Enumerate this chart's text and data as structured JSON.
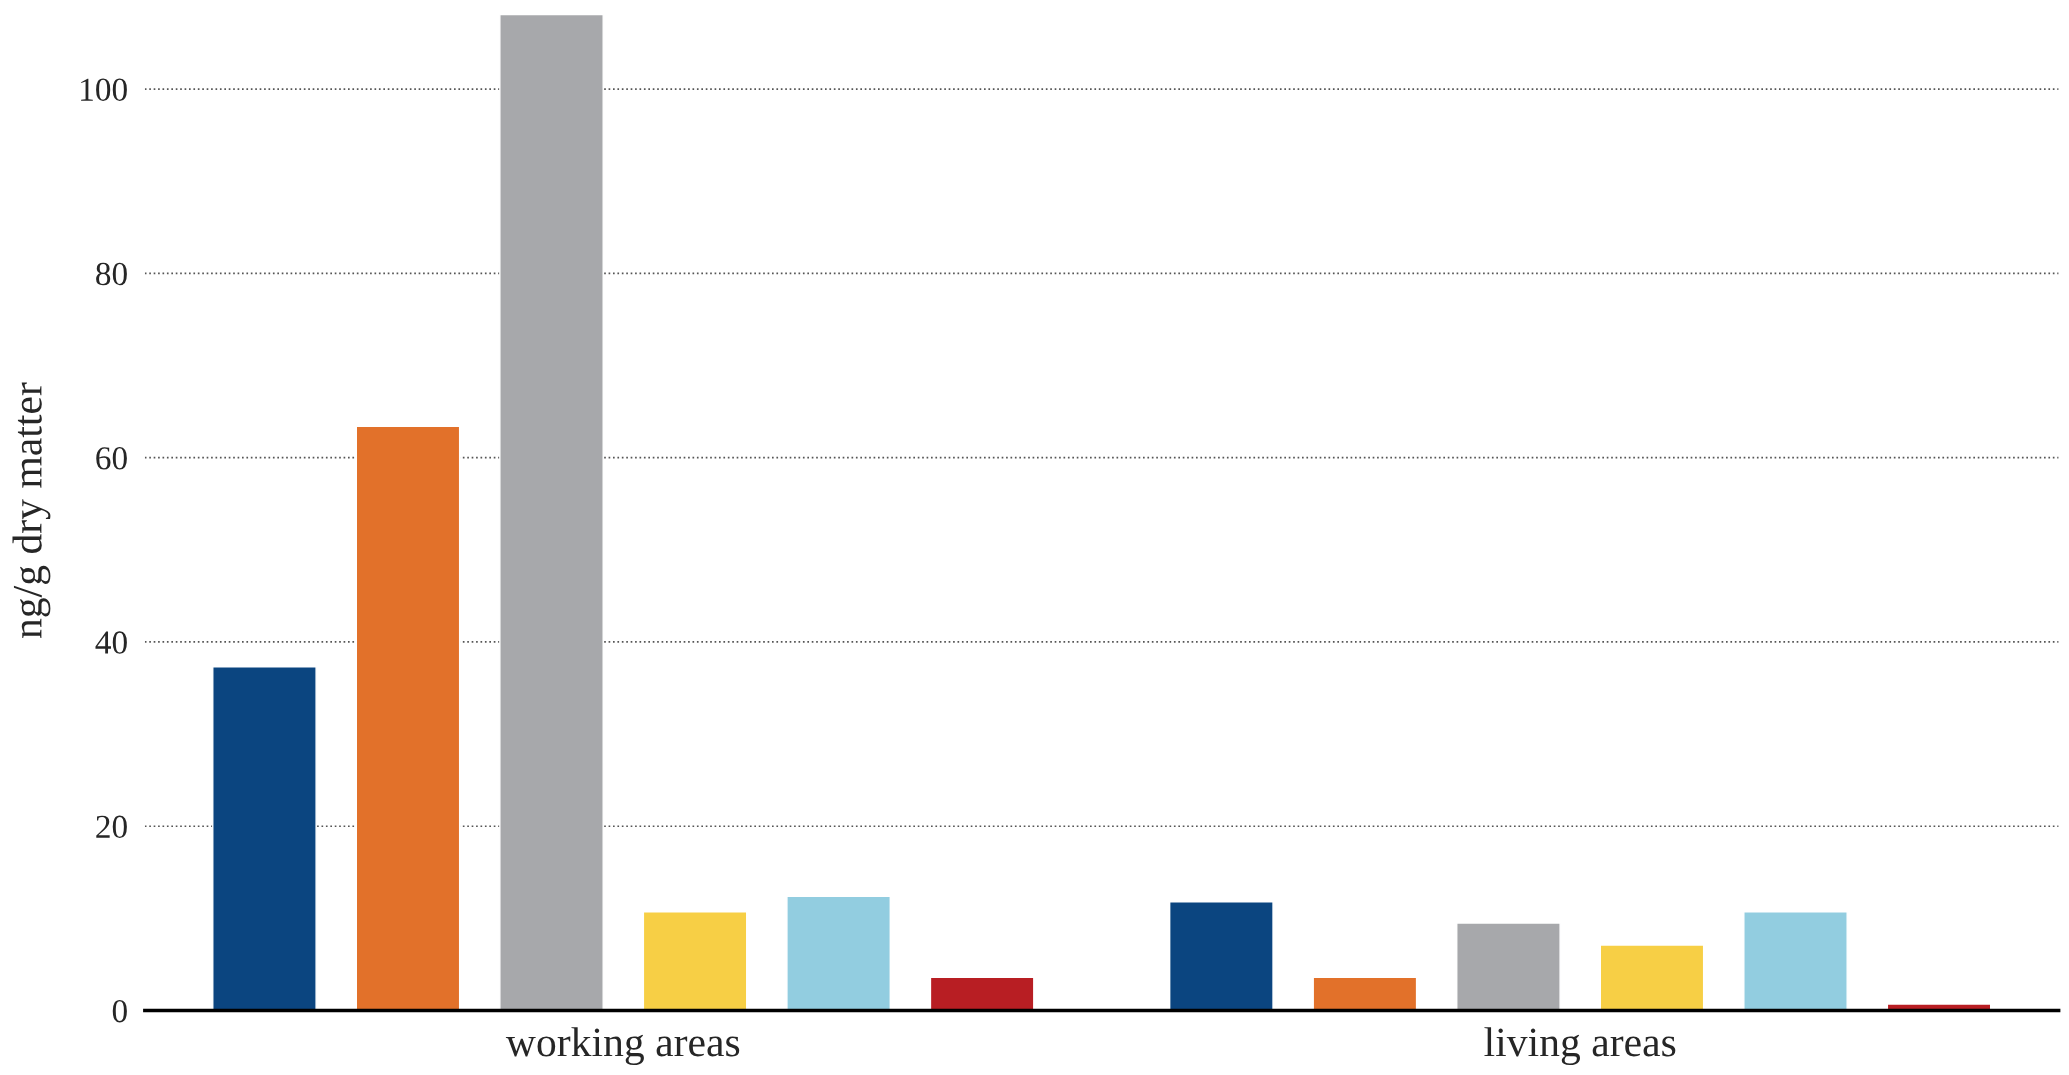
{
  "chart_data": {
    "type": "bar",
    "ylabel": "ng/g dry matter",
    "categories": [
      "working areas",
      "living areas"
    ],
    "series": [
      {
        "color": "#0b4580",
        "values": [
          37.3,
          11.8
        ]
      },
      {
        "color": "#e2712a",
        "values": [
          63.4,
          3.6
        ]
      },
      {
        "color": "#a7a8ab",
        "values": [
          108.1,
          9.5
        ]
      },
      {
        "color": "#f7cf45",
        "values": [
          10.7,
          7.1
        ]
      },
      {
        "color": "#92cde0",
        "values": [
          12.4,
          10.7
        ]
      },
      {
        "color": "#b81e23",
        "values": [
          3.6,
          0.7
        ]
      }
    ],
    "ylim": [
      0,
      108.5
    ],
    "yticks": [
      0,
      20,
      40,
      60,
      80,
      100
    ],
    "grid": "y",
    "legend": false
  }
}
